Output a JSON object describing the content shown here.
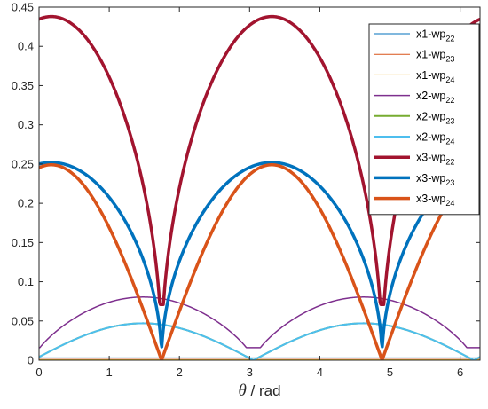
{
  "chart_data": {
    "type": "line",
    "xlabel": "θ / rad",
    "ylabel": "",
    "xlim": [
      0,
      6.283
    ],
    "ylim": [
      0,
      0.45
    ],
    "x_ticks": [
      "0",
      "1",
      "2",
      "3",
      "4",
      "5",
      "6"
    ],
    "y_ticks": [
      "0",
      "0.05",
      "0.1",
      "0.15",
      "0.2",
      "0.25",
      "0.3",
      "0.35",
      "0.4",
      "0.45"
    ],
    "grid": false,
    "legend_position": "top-right",
    "series": [
      {
        "name": "x1-wp22",
        "label_main": "x1-wp",
        "label_sub": "22",
        "color": "#0072bd",
        "width": 1,
        "kind": "const",
        "value": 0.003
      },
      {
        "name": "x1-wp23",
        "label_main": "x1-wp",
        "label_sub": "23",
        "color": "#d95319",
        "width": 1,
        "kind": "const",
        "value": 0.001
      },
      {
        "name": "x1-wp24",
        "label_main": "x1-wp",
        "label_sub": "24",
        "color": "#edb120",
        "width": 1,
        "kind": "const",
        "value": 0.0005
      },
      {
        "name": "x2-wp22",
        "label_main": "x2-wp",
        "label_sub": "22",
        "color": "#7e2f8e",
        "width": 1.5,
        "kind": "shaped",
        "a": 0.0805,
        "phase": 1.483,
        "min": 0.016
      },
      {
        "name": "x2-wp23",
        "label_main": "x2-wp",
        "label_sub": "23",
        "color": "#77ac30",
        "width": 2,
        "kind": "abs",
        "a": 0.047,
        "phase": 1.483
      },
      {
        "name": "x2-wp24",
        "label_main": "x2-wp",
        "label_sub": "24",
        "color": "#4dbeee",
        "width": 2,
        "kind": "abs",
        "a": 0.047,
        "phase": 1.483
      },
      {
        "name": "x3-wp22",
        "label_main": "x3-wp",
        "label_sub": "22",
        "color": "#a2142f",
        "width": 3.5,
        "kind": "sqrt",
        "a": 0.438,
        "phase": 0.175,
        "min": 0.071
      },
      {
        "name": "x3-wp23",
        "label_main": "x3-wp",
        "label_sub": "23",
        "color": "#0072bd",
        "width": 3.5,
        "kind": "sqrt",
        "a": 0.252,
        "phase": 0.175,
        "min": 0.017
      },
      {
        "name": "x3-wp24",
        "label_main": "x3-wp",
        "label_sub": "24",
        "color": "#d95319",
        "width": 3.5,
        "kind": "abs",
        "a": 0.249,
        "phase": 0.175
      }
    ]
  }
}
